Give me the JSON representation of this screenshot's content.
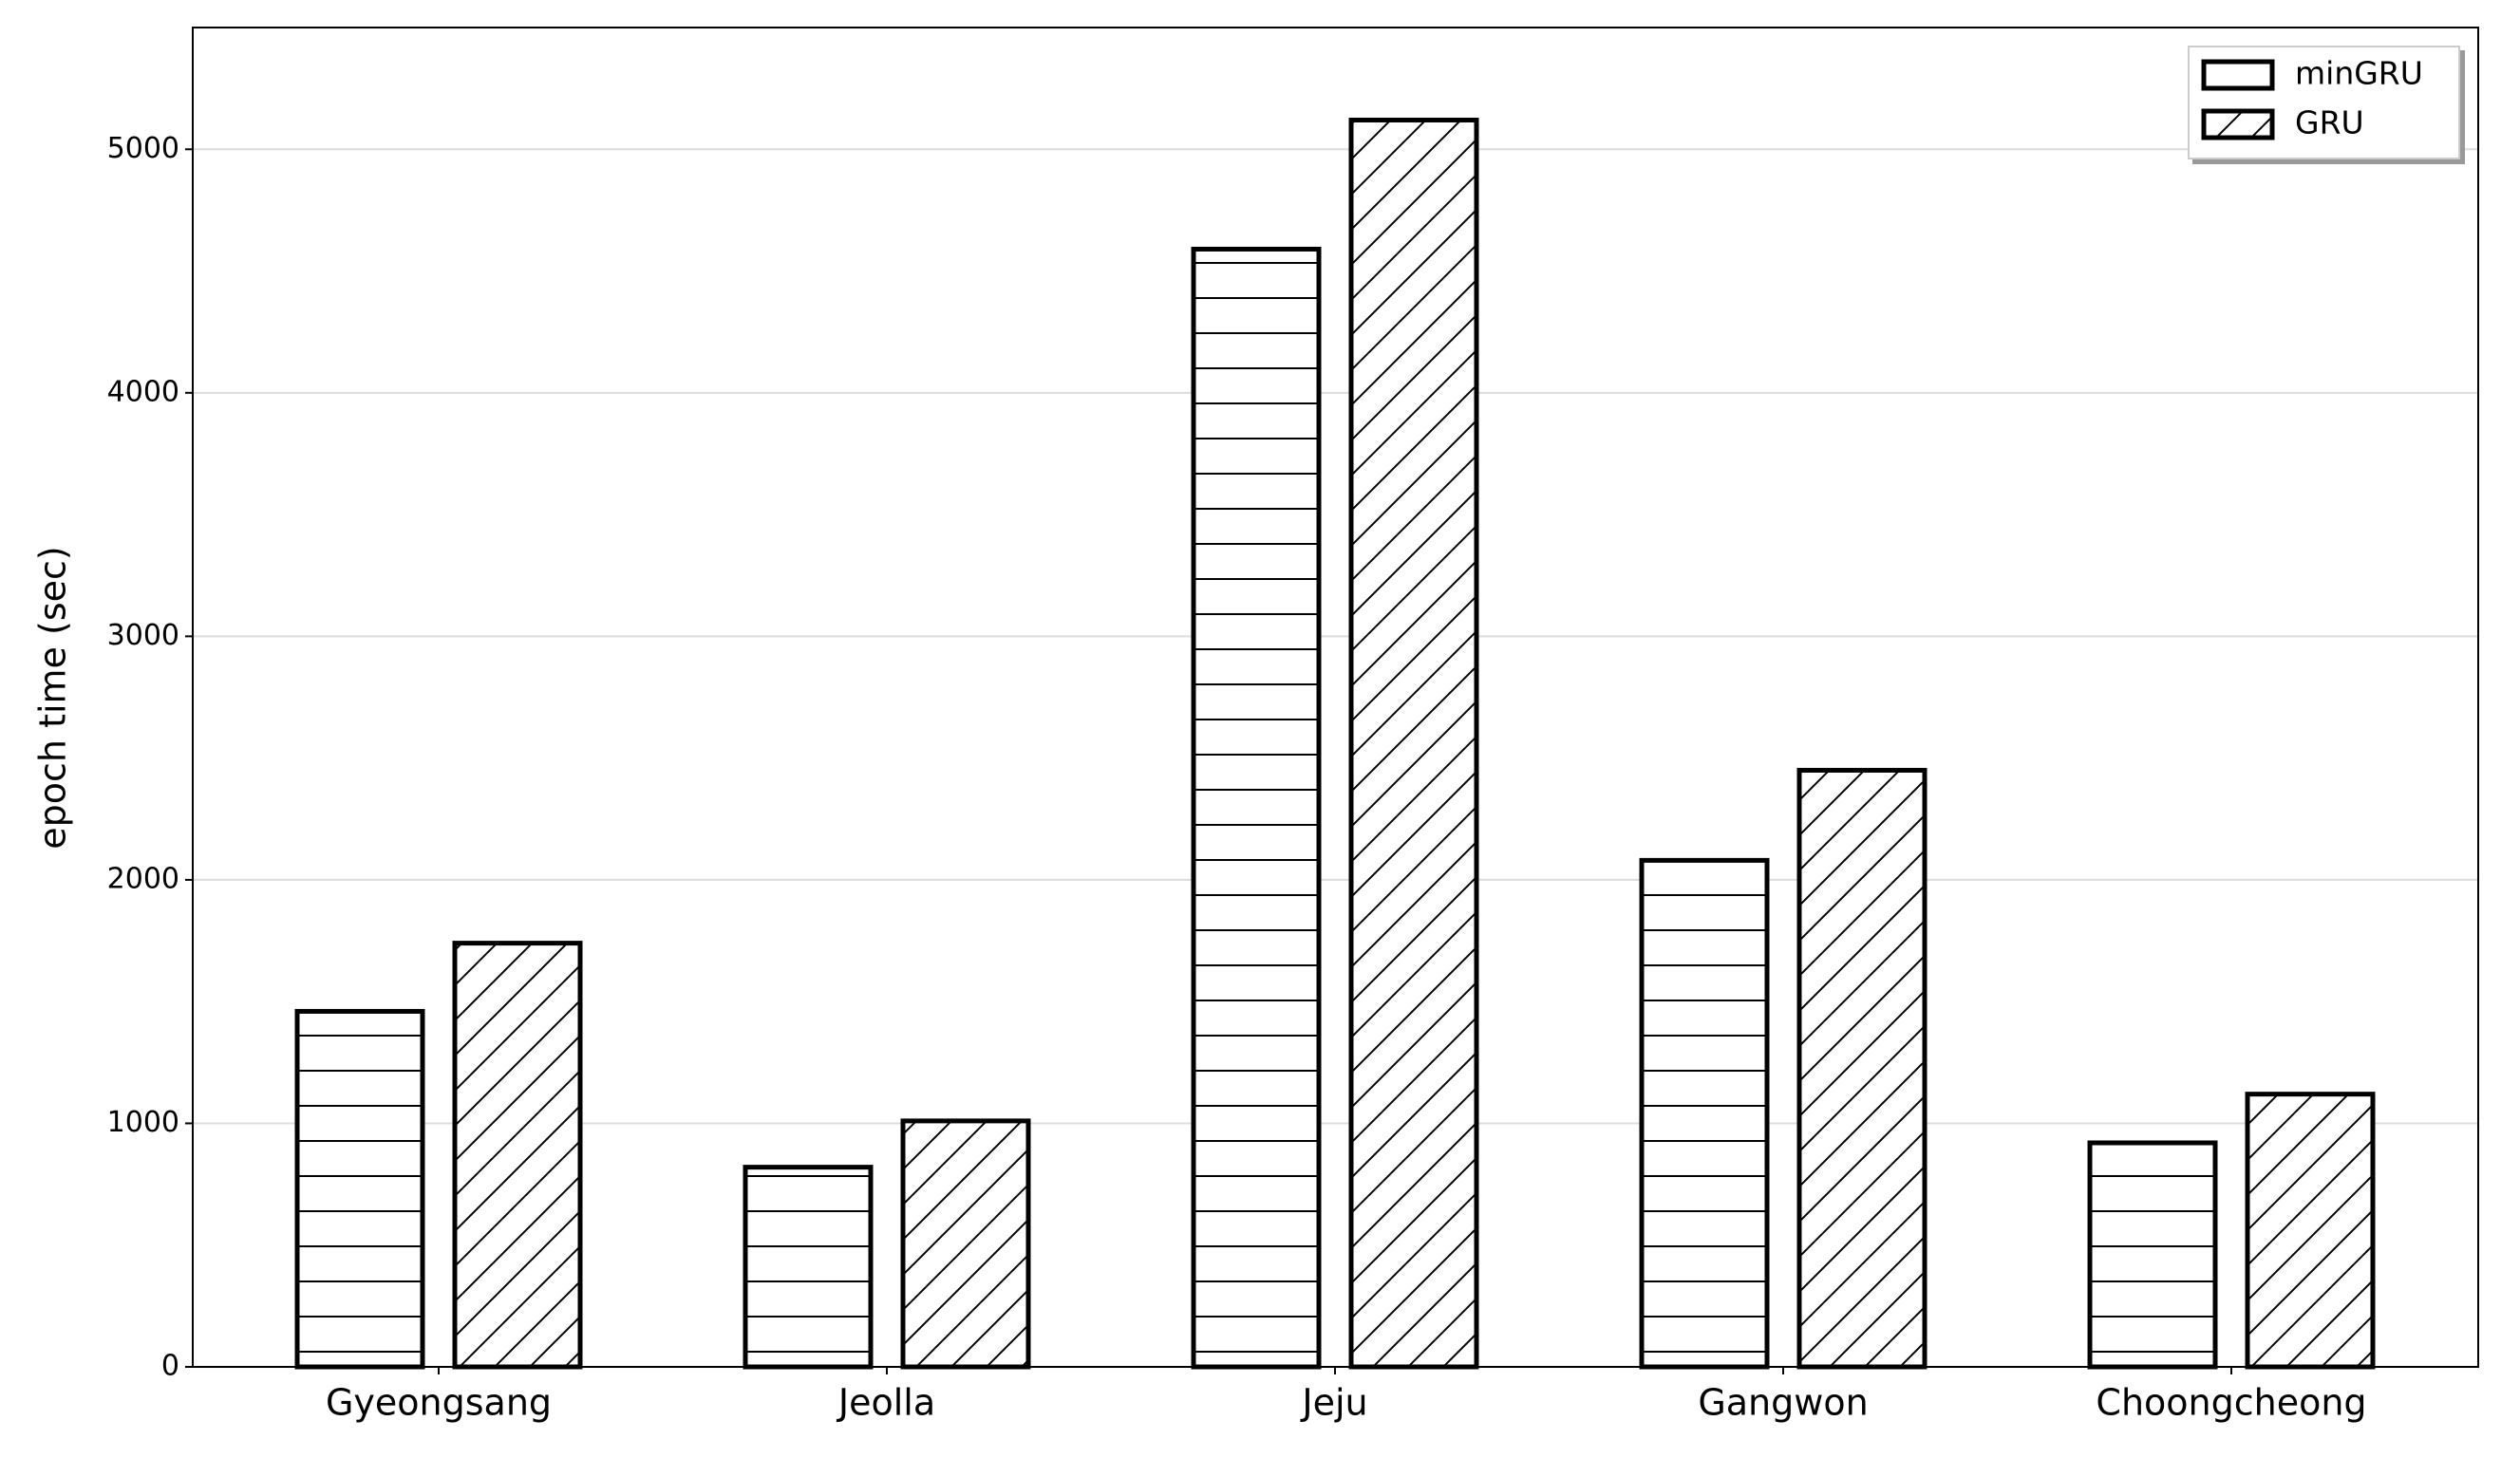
{
  "chart_data": {
    "type": "bar",
    "ylabel": "epoch time (sec)",
    "categories": [
      "Gyeongsang",
      "Jeolla",
      "Jeju",
      "Gangwon",
      "Choongcheong"
    ],
    "series": [
      {
        "name": "minGRU",
        "color": "#ffffff",
        "hatch": "-",
        "values": [
          1460,
          820,
          4590,
          2080,
          920
        ]
      },
      {
        "name": "GRU",
        "color": "#ffffff",
        "hatch": "/",
        "values": [
          1740,
          1010,
          5120,
          2450,
          1120
        ]
      }
    ],
    "ylim": [
      0,
      5500
    ],
    "yticks": [
      0,
      1000,
      2000,
      3000,
      4000,
      5000
    ],
    "grid": true,
    "legend": "upper right"
  }
}
